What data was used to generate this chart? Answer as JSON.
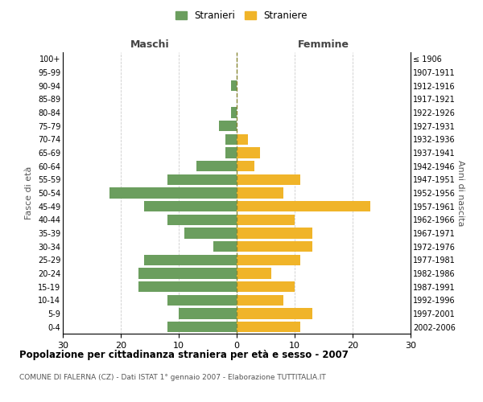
{
  "age_groups": [
    "0-4",
    "5-9",
    "10-14",
    "15-19",
    "20-24",
    "25-29",
    "30-34",
    "35-39",
    "40-44",
    "45-49",
    "50-54",
    "55-59",
    "60-64",
    "65-69",
    "70-74",
    "75-79",
    "80-84",
    "85-89",
    "90-94",
    "95-99",
    "100+"
  ],
  "birth_years": [
    "2002-2006",
    "1997-2001",
    "1992-1996",
    "1987-1991",
    "1982-1986",
    "1977-1981",
    "1972-1976",
    "1967-1971",
    "1962-1966",
    "1957-1961",
    "1952-1956",
    "1947-1951",
    "1942-1946",
    "1937-1941",
    "1932-1936",
    "1927-1931",
    "1922-1926",
    "1917-1921",
    "1912-1916",
    "1907-1911",
    "≤ 1906"
  ],
  "maschi": [
    12,
    10,
    12,
    17,
    17,
    16,
    4,
    9,
    12,
    16,
    22,
    12,
    7,
    2,
    2,
    3,
    1,
    0,
    1,
    0,
    0
  ],
  "femmine": [
    11,
    13,
    8,
    10,
    6,
    11,
    13,
    13,
    10,
    23,
    8,
    11,
    3,
    4,
    2,
    0,
    0,
    0,
    0,
    0,
    0
  ],
  "male_color": "#6b9e5e",
  "female_color": "#f0b429",
  "title": "Popolazione per cittadinanza straniera per età e sesso - 2007",
  "subtitle": "COMUNE DI FALERNA (CZ) - Dati ISTAT 1° gennaio 2007 - Elaborazione TUTTITALIA.IT",
  "legend_male": "Stranieri",
  "legend_female": "Straniere",
  "xlabel_left": "Maschi",
  "xlabel_right": "Femmine",
  "ylabel_left": "Fasce di età",
  "ylabel_right": "Anni di nascita",
  "xlim": 30,
  "background_color": "#ffffff",
  "grid_color": "#cccccc"
}
